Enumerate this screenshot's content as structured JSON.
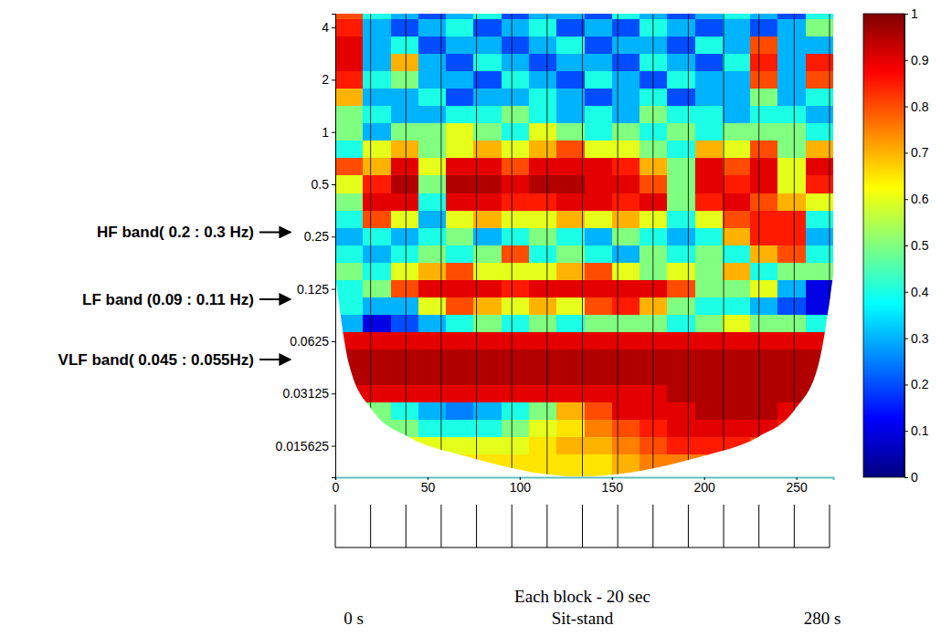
{
  "chart_data": {
    "type": "heatmap",
    "log": "y",
    "x": [
      7.5,
      22.5,
      37.5,
      52.5,
      67.5,
      82.5,
      97.5,
      112.5,
      127.5,
      142.5,
      157.5,
      172.5,
      187.5,
      202.5,
      217.5,
      232.5,
      247.5,
      262.5
    ],
    "y": [
      5.04,
      4,
      3.17,
      2.52,
      2,
      1.59,
      1.26,
      1,
      0.794,
      0.63,
      0.5,
      0.397,
      0.315,
      0.25,
      0.198,
      0.157,
      0.125,
      0.0992,
      0.0787,
      0.0625,
      0.0496,
      0.0394,
      0.03125,
      0.0248,
      0.0197,
      0.0156,
      0.0124,
      0.00984
    ],
    "z": [
      [
        0.8,
        0.4,
        0.3,
        0.2,
        0.3,
        0.4,
        0.2,
        0.3,
        0.3,
        0.2,
        0.4,
        0.3,
        0.2,
        0.3,
        0.4,
        0.3,
        0.2,
        0.4
      ],
      [
        0.85,
        0.3,
        0.2,
        0.3,
        0.4,
        0.2,
        0.3,
        0.4,
        0.2,
        0.3,
        0.2,
        0.4,
        0.3,
        0.2,
        0.3,
        0.2,
        0.3,
        0.5
      ],
      [
        0.9,
        0.3,
        0.4,
        0.2,
        0.3,
        0.3,
        0.2,
        0.3,
        0.4,
        0.2,
        0.3,
        0.3,
        0.2,
        0.4,
        0.3,
        0.8,
        0.3,
        0.3
      ],
      [
        0.9,
        0.3,
        0.7,
        0.3,
        0.2,
        0.4,
        0.3,
        0.2,
        0.3,
        0.3,
        0.2,
        0.4,
        0.3,
        0.2,
        0.4,
        0.85,
        0.3,
        0.85
      ],
      [
        0.85,
        0.4,
        0.5,
        0.3,
        0.3,
        0.2,
        0.4,
        0.3,
        0.2,
        0.4,
        0.3,
        0.2,
        0.4,
        0.3,
        0.3,
        0.8,
        0.3,
        0.8
      ],
      [
        0.7,
        0.3,
        0.3,
        0.4,
        0.2,
        0.3,
        0.3,
        0.4,
        0.3,
        0.2,
        0.3,
        0.4,
        0.2,
        0.3,
        0.3,
        0.5,
        0.3,
        0.4
      ],
      [
        0.5,
        0.4,
        0.3,
        0.3,
        0.4,
        0.4,
        0.5,
        0.4,
        0.3,
        0.4,
        0.3,
        0.5,
        0.4,
        0.4,
        0.3,
        0.4,
        0.4,
        0.3
      ],
      [
        0.5,
        0.3,
        0.5,
        0.5,
        0.6,
        0.5,
        0.4,
        0.6,
        0.5,
        0.4,
        0.5,
        0.4,
        0.5,
        0.4,
        0.5,
        0.5,
        0.5,
        0.4
      ],
      [
        0.4,
        0.6,
        0.7,
        0.5,
        0.6,
        0.7,
        0.6,
        0.7,
        0.8,
        0.6,
        0.6,
        0.5,
        0.4,
        0.7,
        0.6,
        0.8,
        0.5,
        0.7
      ],
      [
        0.8,
        0.7,
        0.9,
        0.6,
        0.9,
        0.9,
        0.8,
        0.9,
        0.9,
        0.9,
        0.85,
        0.7,
        0.5,
        0.9,
        0.8,
        0.9,
        0.6,
        0.9
      ],
      [
        0.6,
        0.85,
        0.95,
        0.5,
        0.95,
        0.95,
        0.9,
        0.95,
        0.95,
        0.9,
        0.9,
        0.8,
        0.5,
        0.9,
        0.85,
        0.9,
        0.6,
        0.85
      ],
      [
        0.5,
        0.9,
        0.9,
        0.4,
        0.9,
        0.9,
        0.85,
        0.85,
        0.9,
        0.9,
        0.85,
        0.9,
        0.5,
        0.85,
        0.9,
        0.8,
        0.7,
        0.6
      ],
      [
        0.4,
        0.8,
        0.6,
        0.3,
        0.6,
        0.7,
        0.6,
        0.6,
        0.7,
        0.6,
        0.7,
        0.6,
        0.4,
        0.6,
        0.8,
        0.85,
        0.85,
        0.4
      ],
      [
        0.3,
        0.4,
        0.3,
        0.4,
        0.5,
        0.3,
        0.4,
        0.5,
        0.4,
        0.3,
        0.5,
        0.4,
        0.3,
        0.4,
        0.7,
        0.85,
        0.85,
        0.3
      ],
      [
        0.4,
        0.3,
        0.4,
        0.5,
        0.4,
        0.5,
        0.8,
        0.4,
        0.5,
        0.4,
        0.3,
        0.5,
        0.4,
        0.5,
        0.4,
        0.7,
        0.8,
        0.4
      ],
      [
        0.5,
        0.4,
        0.6,
        0.7,
        0.8,
        0.6,
        0.6,
        0.6,
        0.7,
        0.8,
        0.6,
        0.5,
        0.6,
        0.5,
        0.7,
        0.4,
        0.5,
        0.5
      ],
      [
        0.4,
        0.5,
        0.8,
        0.9,
        0.9,
        0.9,
        0.85,
        0.9,
        0.9,
        0.9,
        0.9,
        0.9,
        0.8,
        0.5,
        0.5,
        0.6,
        0.3,
        0.1
      ],
      [
        0.4,
        0.3,
        0.3,
        0.6,
        0.8,
        0.7,
        0.6,
        0.7,
        0.6,
        0.8,
        0.85,
        0.7,
        0.5,
        0.4,
        0.4,
        0.3,
        0.2,
        0.1
      ],
      [
        0.3,
        0.1,
        0.2,
        0.3,
        0.4,
        0.5,
        0.4,
        0.5,
        0.4,
        0.5,
        0.5,
        0.5,
        0.4,
        0.5,
        0.6,
        0.5,
        0.5,
        0.4
      ],
      [
        0.9,
        0.9,
        0.9,
        0.9,
        0.9,
        0.9,
        0.9,
        0.9,
        0.9,
        0.9,
        0.9,
        0.9,
        0.9,
        0.9,
        0.9,
        0.9,
        0.9,
        0.9
      ],
      [
        0.95,
        0.95,
        0.95,
        0.95,
        0.95,
        0.95,
        0.95,
        0.95,
        0.95,
        0.95,
        0.95,
        0.95,
        0.95,
        0.95,
        0.95,
        0.95,
        0.95,
        0.95
      ],
      [
        0.95,
        0.95,
        0.95,
        0.95,
        0.95,
        0.95,
        0.95,
        0.95,
        0.95,
        0.95,
        0.95,
        0.95,
        0.95,
        0.95,
        0.95,
        0.95,
        0.95,
        0.95
      ],
      [
        0.9,
        0.9,
        0.9,
        0.9,
        0.9,
        0.9,
        0.9,
        0.9,
        0.9,
        0.9,
        0.9,
        0.9,
        0.95,
        0.95,
        0.95,
        0.95,
        0.95,
        0.95
      ],
      [
        0.6,
        0.5,
        0.4,
        0.3,
        0.25,
        0.3,
        0.4,
        0.5,
        0.7,
        0.8,
        0.9,
        0.9,
        0.9,
        0.95,
        0.95,
        0.95,
        0.9,
        0.9
      ],
      [
        0.6,
        0.5,
        0.5,
        0.4,
        0.4,
        0.4,
        0.5,
        0.6,
        0.65,
        0.75,
        0.8,
        0.85,
        0.9,
        0.9,
        0.9,
        0.9,
        0.85,
        0.8
      ],
      [
        0.6,
        0.6,
        0.6,
        0.6,
        0.6,
        0.6,
        0.6,
        0.65,
        0.7,
        0.7,
        0.75,
        0.8,
        0.85,
        0.85,
        0.85,
        0.8,
        0.8,
        0.7
      ],
      [
        0.6,
        0.6,
        0.6,
        0.6,
        0.65,
        0.65,
        0.65,
        0.65,
        0.65,
        0.65,
        0.7,
        0.75,
        0.75,
        0.75,
        0.7,
        0.7,
        0.7,
        0.6
      ],
      [
        0.6,
        0.6,
        0.6,
        0.6,
        0.6,
        0.65,
        0.65,
        0.65,
        0.65,
        0.65,
        0.7,
        0.7,
        0.7,
        0.7,
        0.7,
        0.65,
        0.65,
        0.6
      ]
    ],
    "xlim": [
      0,
      270
    ],
    "xticks": [
      0,
      50,
      100,
      150,
      200,
      250
    ],
    "ylim": [
      0.0103,
      4.8
    ],
    "yticks": [
      4,
      2,
      1,
      0.5,
      0.25,
      0.125,
      0.0625,
      0.03125,
      0.015625
    ],
    "colorbar": {
      "range": [
        0,
        1
      ],
      "ticks": [
        0,
        0.1,
        0.2,
        0.3,
        0.4,
        0.5,
        0.6,
        0.7,
        0.8,
        0.9,
        1
      ]
    },
    "coi": {
      "x": [
        0,
        7.5,
        20,
        40,
        70,
        132,
        200,
        229,
        249,
        262,
        270
      ],
      "y": [
        0.15,
        0.0457,
        0.0251,
        0.0175,
        0.0137,
        0.0104,
        0.0137,
        0.0175,
        0.0251,
        0.0457,
        0.15
      ]
    },
    "blocks": {
      "range": [
        0,
        280
      ],
      "edges": [
        0,
        20,
        40,
        60,
        80,
        100,
        120,
        140,
        160,
        180,
        200,
        220,
        240,
        260,
        280
      ]
    },
    "annotations": [
      {
        "text": "HF band( 0.2 : 0.3 Hz)",
        "y": 0.265
      },
      {
        "text": "LF band (0.09 : 0.11 Hz)",
        "y": 0.109
      },
      {
        "text": "VLF band( 0.045 : 0.055Hz)",
        "y": 0.049
      }
    ],
    "texts": {
      "start": "0 s",
      "note": "Each block - 20 sec",
      "condition": "Sit-stand",
      "end": "280 s"
    }
  }
}
